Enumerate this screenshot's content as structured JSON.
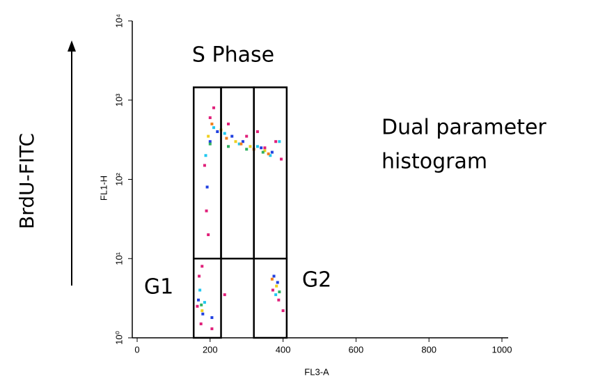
{
  "chart_data": {
    "type": "scatter",
    "x_label": "FL3-A",
    "y_label": "FL1-H",
    "side_label": "BrdU-FITC",
    "xlim": [
      0,
      1000
    ],
    "xticks": [
      0,
      200,
      400,
      600,
      800,
      1000
    ],
    "ylim": [
      1,
      10000
    ],
    "y_scale": "log",
    "yticks": [
      {
        "value": 1,
        "label": "10⁰"
      },
      {
        "value": 10,
        "label": "10¹"
      },
      {
        "value": 100,
        "label": "10²"
      },
      {
        "value": 1000,
        "label": "10³"
      },
      {
        "value": 10000,
        "label": "10⁴"
      }
    ],
    "gates": [
      {
        "x": [
          155,
          230
        ],
        "y": [
          10,
          1450
        ]
      },
      {
        "x": [
          230,
          320
        ],
        "y": [
          10,
          1450
        ]
      },
      {
        "x": [
          320,
          410
        ],
        "y": [
          10,
          1450
        ]
      },
      {
        "x": [
          155,
          230
        ],
        "y": [
          1,
          10
        ]
      },
      {
        "x": [
          320,
          410
        ],
        "y": [
          1,
          10
        ]
      }
    ],
    "annotations": [
      "S Phase",
      "G1",
      "G2",
      "Dual parameter",
      "histogram"
    ],
    "series": [
      {
        "color": "#e0207a",
        "x": [
          165,
          175,
          190,
          200,
          185,
          210,
          250,
          300,
          350,
          380,
          395,
          372,
          388,
          195,
          170,
          205,
          330,
          400,
          240,
          178
        ],
        "values": [
          2.5,
          1.5,
          40,
          600,
          150,
          800,
          500,
          350,
          250,
          300,
          180,
          4,
          3,
          20,
          6,
          1.3,
          400,
          2.2,
          3.5,
          8
        ]
      },
      {
        "color": "#2040e0",
        "x": [
          168,
          180,
          200,
          220,
          260,
          290,
          340,
          370,
          385,
          375,
          192,
          205
        ],
        "values": [
          3,
          2,
          300,
          400,
          350,
          300,
          250,
          220,
          5,
          6,
          80,
          1.8
        ]
      },
      {
        "color": "#20c8f0",
        "x": [
          172,
          188,
          210,
          240,
          280,
          330,
          365,
          390,
          380,
          185
        ],
        "values": [
          4,
          200,
          450,
          380,
          280,
          260,
          200,
          300,
          3.5,
          2.8
        ]
      },
      {
        "color": "#f0d020",
        "x": [
          195,
          230,
          270,
          310,
          350,
          178,
          382
        ],
        "values": [
          350,
          420,
          300,
          260,
          230,
          2.2,
          4.5
        ]
      },
      {
        "color": "#f08020",
        "x": [
          205,
          245,
          285,
          320,
          360,
          370
        ],
        "values": [
          500,
          330,
          280,
          240,
          210,
          5.5
        ]
      },
      {
        "color": "#30b060",
        "x": [
          200,
          250,
          300,
          345,
          176,
          390
        ],
        "values": [
          280,
          260,
          240,
          220,
          2.6,
          3.8
        ]
      }
    ]
  }
}
